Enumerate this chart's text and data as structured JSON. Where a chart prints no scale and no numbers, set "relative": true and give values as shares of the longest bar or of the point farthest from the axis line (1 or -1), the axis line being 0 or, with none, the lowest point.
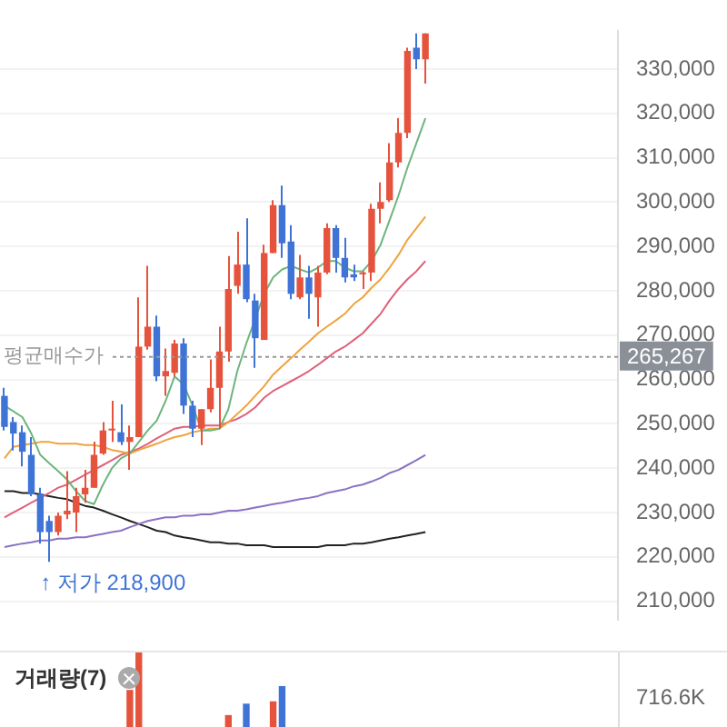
{
  "chart_data": [
    {
      "type": "candlestick",
      "categories": [
        null,
        null,
        null,
        null,
        null,
        null,
        null,
        null,
        null,
        null,
        null,
        null,
        null,
        null,
        null,
        null,
        null,
        null,
        null,
        null,
        null,
        null,
        null,
        null,
        null,
        null,
        null,
        null,
        null,
        null,
        null,
        null,
        null,
        null,
        null,
        null,
        null,
        null,
        null,
        null,
        null,
        null,
        null,
        null,
        null,
        null,
        null,
        null,
        null,
        null,
        null,
        null,
        null,
        null,
        null,
        null,
        null,
        null,
        null,
        null,
        null,
        null,
        null,
        null,
        null,
        null,
        null,
        null,
        null
      ],
      "ohlc": [
        [
          256300,
          258100,
          248500,
          249300
        ],
        [
          250400,
          251500,
          244000,
          247800
        ],
        [
          248100,
          249600,
          240400,
          243700
        ],
        [
          243000,
          247000,
          233700,
          234100
        ],
        [
          234100,
          235600,
          223000,
          225600
        ],
        [
          228100,
          229300,
          218900,
          225600
        ],
        [
          225600,
          230000,
          224800,
          229300
        ],
        [
          229600,
          239300,
          228500,
          230400
        ],
        [
          230000,
          235600,
          225600,
          233700
        ],
        [
          234100,
          239600,
          232200,
          235600
        ],
        [
          235600,
          246000,
          235600,
          243000
        ],
        [
          243300,
          250400,
          243000,
          248500
        ],
        [
          248500,
          255200,
          245900,
          248900
        ],
        [
          248100,
          254400,
          245200,
          245900
        ],
        [
          245900,
          249600,
          239600,
          247000
        ],
        [
          247000,
          278500,
          247000,
          267400
        ],
        [
          267400,
          285600,
          266700,
          271900
        ],
        [
          271900,
          274400,
          259600,
          260700
        ],
        [
          260700,
          267000,
          256300,
          261900
        ],
        [
          261500,
          268900,
          260700,
          268100
        ],
        [
          268100,
          269300,
          252200,
          254100
        ],
        [
          254100,
          255200,
          247000,
          248900
        ],
        [
          248900,
          253300,
          245200,
          253300
        ],
        [
          253300,
          264500,
          252600,
          258100
        ],
        [
          258100,
          271900,
          248900,
          266300
        ],
        [
          266300,
          287800,
          264000,
          280400
        ],
        [
          281100,
          293300,
          279300,
          285900
        ],
        [
          285900,
          296300,
          277400,
          278100
        ],
        [
          277800,
          279300,
          262600,
          269300
        ],
        [
          268900,
          290400,
          268900,
          288500
        ],
        [
          288500,
          300400,
          288500,
          299300
        ],
        [
          299300,
          303700,
          287400,
          290700
        ],
        [
          291100,
          294800,
          278100,
          279300
        ],
        [
          278500,
          288100,
          278100,
          283000
        ],
        [
          283000,
          285600,
          273700,
          279300
        ],
        [
          278500,
          285600,
          271900,
          284100
        ],
        [
          284100,
          295200,
          283700,
          294100
        ],
        [
          294100,
          294800,
          284100,
          287400
        ],
        [
          287400,
          291900,
          281900,
          283000
        ],
        [
          283700,
          285900,
          282200,
          283000
        ],
        [
          283700,
          284400,
          280400,
          284100
        ],
        [
          284100,
          299600,
          282200,
          298500
        ],
        [
          298500,
          304400,
          295200,
          300000
        ],
        [
          300400,
          313300,
          300000,
          308900
        ],
        [
          308900,
          318900,
          307800,
          315600
        ],
        [
          315600,
          334800,
          314400,
          334100
        ],
        [
          334800,
          338000,
          330000,
          332200
        ],
        [
          332200,
          338000,
          326700,
          338000
        ],
        null,
        null,
        null,
        null,
        null,
        null,
        null,
        null,
        null,
        null,
        null,
        null,
        null,
        null,
        null,
        null,
        null,
        null,
        null,
        null,
        null
      ],
      "colors": [
        "#3f74d6",
        "#3f74d6",
        "#3f74d6",
        "#3f74d6",
        "#3f74d6",
        "#3f74d6",
        "#e5533d",
        "#e5533d",
        "#e5533d",
        "#e5533d",
        "#e5533d",
        "#e5533d",
        "#e5533d",
        "#3f74d6",
        "#e5533d",
        "#e5533d",
        "#e5533d",
        "#3f74d6",
        "#e5533d",
        "#e5533d",
        "#3f74d6",
        "#3f74d6",
        "#e5533d",
        "#e5533d",
        "#e5533d",
        "#e5533d",
        "#e5533d",
        "#3f74d6",
        "#3f74d6",
        "#e5533d",
        "#e5533d",
        "#3f74d6",
        "#3f74d6",
        "#e5533d",
        "#3f74d6",
        "#e5533d",
        "#e5533d",
        "#3f74d6",
        "#3f74d6",
        "#3f74d6",
        "#e5533d",
        "#e5533d",
        "#e5533d",
        "#e5533d",
        "#e5533d",
        "#e5533d",
        "#3f74d6",
        "#e5533d",
        null,
        null,
        null,
        null,
        null,
        null,
        null,
        null,
        null,
        null,
        null,
        null,
        null,
        null,
        null,
        null,
        null,
        null,
        null,
        null,
        null
      ],
      "series": [
        {
          "type": "line",
          "color": "#6cb57c",
          "values": [
            254100,
            null,
            251500,
            247800,
            243000,
            241100,
            239300,
            237400,
            234800,
            232600,
            231900,
            236300,
            240000,
            242200,
            243300,
            245900,
            248500,
            250700,
            255200,
            260700,
            258900,
            254100,
            248500,
            248500,
            248900,
            253300,
            261900,
            268100,
            null,
            279300,
            283000,
            284800,
            285600,
            284800,
            284100,
            285200,
            286700,
            286700,
            285200,
            284400,
            284400,
            286700,
            290400,
            295900,
            301500,
            307800,
            313300,
            318900,
            null,
            null,
            null,
            null,
            null,
            null,
            null,
            null,
            null,
            null,
            null,
            null,
            null,
            null,
            null,
            null,
            null,
            null,
            null,
            null,
            null
          ]
        },
        {
          "type": "line",
          "color": "#f0a23c",
          "values": [
            242200,
            244800,
            245200,
            245500,
            245900,
            245900,
            245500,
            245500,
            245500,
            245200,
            245200,
            244800,
            244100,
            243700,
            243300,
            244100,
            244800,
            245500,
            246300,
            247000,
            247400,
            248100,
            248500,
            248900,
            248900,
            250400,
            252200,
            254100,
            256300,
            258500,
            261100,
            263000,
            264800,
            266700,
            268500,
            270400,
            271900,
            273300,
            274800,
            277000,
            278500,
            280700,
            282600,
            285200,
            288100,
            291500,
            294100,
            296700,
            null,
            null,
            null,
            null,
            null,
            null,
            null,
            null,
            null,
            null,
            null,
            null,
            null,
            null,
            null,
            null,
            null,
            null,
            null,
            null,
            null
          ]
        },
        {
          "type": "line",
          "color": "#e0607a",
          "values": [
            228900,
            230000,
            231100,
            232200,
            233300,
            234400,
            235600,
            236300,
            237400,
            238500,
            239600,
            240700,
            241800,
            243000,
            243700,
            244400,
            245500,
            246700,
            247800,
            248900,
            249300,
            249300,
            249600,
            249600,
            249600,
            250400,
            251100,
            252200,
            253700,
            255900,
            257400,
            258500,
            259600,
            260700,
            261900,
            263300,
            264800,
            266300,
            267400,
            268900,
            270400,
            272600,
            274800,
            277800,
            280400,
            282600,
            284400,
            286700,
            null,
            null,
            null,
            null,
            null,
            null,
            null,
            null,
            null,
            null,
            null,
            null,
            null,
            null,
            null,
            null,
            null,
            null,
            null,
            null,
            null
          ]
        },
        {
          "type": "line",
          "color": "#8a72c4",
          "values": [
            222200,
            222600,
            223000,
            223300,
            223700,
            223700,
            224100,
            224100,
            224400,
            224400,
            224800,
            225200,
            225600,
            225900,
            226700,
            227400,
            228100,
            228500,
            228900,
            228900,
            229300,
            229300,
            229600,
            229600,
            230000,
            230400,
            230400,
            230700,
            231100,
            231500,
            231900,
            232200,
            232600,
            233000,
            233300,
            233700,
            234400,
            234800,
            235200,
            235900,
            236300,
            237000,
            237800,
            238900,
            239600,
            240700,
            241800,
            243000,
            null,
            null,
            null,
            null,
            null,
            null,
            null,
            null,
            null,
            null,
            null,
            null,
            null,
            null,
            null,
            null,
            null,
            null,
            null,
            null,
            null
          ]
        },
        {
          "type": "line",
          "color": "#222222",
          "values": [
            234800,
            234800,
            234400,
            234400,
            234100,
            233700,
            233300,
            233000,
            232200,
            231500,
            231100,
            230400,
            229600,
            228900,
            228100,
            227400,
            226700,
            225900,
            225600,
            224800,
            224400,
            224100,
            223700,
            223300,
            223300,
            223000,
            223000,
            222600,
            222600,
            222600,
            222200,
            222200,
            222200,
            222200,
            222200,
            222200,
            222600,
            222600,
            222600,
            223000,
            223000,
            223300,
            223700,
            224100,
            224400,
            224800,
            225200,
            225600,
            null,
            null,
            null,
            null,
            null,
            null,
            null,
            null,
            null,
            null,
            null,
            null,
            null,
            null,
            null,
            null,
            null,
            null,
            null,
            null,
            null
          ]
        }
      ],
      "ylim": [
        205900,
        338500
      ],
      "yticks": [
        {
          "value": 210000,
          "label": "210,000"
        },
        {
          "value": 220000,
          "label": "220,000"
        },
        {
          "value": 230000,
          "label": "230,000"
        },
        {
          "value": 240000,
          "label": "240,000"
        },
        {
          "value": 250000,
          "label": "250,000"
        },
        {
          "value": 260000,
          "label": "260,000"
        },
        {
          "value": 270000,
          "label": "270,000"
        },
        {
          "value": 280000,
          "label": "280,000"
        },
        {
          "value": 290000,
          "label": "290,000"
        },
        {
          "value": 300000,
          "label": "300,000"
        },
        {
          "value": 310000,
          "label": "310,000"
        },
        {
          "value": 320000,
          "label": "320,000"
        },
        {
          "value": 330000,
          "label": "330,000"
        }
      ],
      "ref_lines": [
        {
          "axis": "y",
          "value": 265267,
          "label": "평균매수가",
          "color": "#999999",
          "line_style": "dotted"
        }
      ],
      "annotations": [
        "↑ 저가 218,900",
        "265,267"
      ],
      "grid": "y",
      "tick_labels": "y",
      "marker": "none",
      "line_style": "solid"
    },
    {
      "type": "bar",
      "title": "거래량(7)",
      "relative": true,
      "categories": [
        null,
        null,
        null,
        null,
        null,
        null,
        null,
        null,
        null,
        null,
        null,
        null,
        null,
        null,
        null,
        null,
        null,
        null,
        null,
        null,
        null,
        null,
        null,
        null,
        null,
        null,
        null,
        null,
        null,
        null,
        null,
        null,
        null,
        null,
        null,
        null,
        null,
        null,
        null,
        null,
        null,
        null,
        null,
        null,
        null,
        null,
        null,
        null,
        null,
        null,
        null,
        null,
        null,
        null,
        null,
        null,
        null,
        null,
        null,
        null,
        null,
        null,
        null,
        null,
        null,
        null,
        null,
        null,
        null
      ],
      "values": [
        null,
        null,
        null,
        null,
        null,
        null,
        null,
        null,
        null,
        null,
        null,
        null,
        null,
        null,
        0.51,
        1,
        null,
        null,
        null,
        null,
        null,
        null,
        null,
        null,
        null,
        0.18,
        null,
        0.33,
        null,
        null,
        0.36,
        0.56,
        null,
        null,
        null,
        null,
        null,
        null,
        null,
        null,
        null,
        null,
        null,
        null,
        null,
        null,
        null,
        null,
        null,
        null,
        null,
        null,
        null,
        null,
        null,
        null,
        null,
        null,
        null,
        null,
        null,
        null,
        null,
        null,
        null,
        null,
        null,
        null,
        null
      ],
      "colors": [
        null,
        null,
        null,
        null,
        null,
        null,
        null,
        null,
        null,
        null,
        null,
        null,
        null,
        null,
        "#e5533d",
        "#e5533d",
        null,
        null,
        null,
        null,
        null,
        null,
        null,
        null,
        null,
        "#e5533d",
        null,
        "#3f74d6",
        null,
        null,
        "#e5533d",
        "#3f74d6",
        null,
        null,
        null,
        null,
        null,
        null,
        null,
        null,
        null,
        null,
        null,
        null,
        null,
        null,
        null,
        null,
        null,
        null,
        null,
        null,
        null,
        null,
        null,
        null,
        null,
        null,
        null,
        null,
        null,
        null,
        null,
        null,
        null,
        null,
        null,
        null,
        null
      ],
      "annotations": [
        "716.6K"
      ],
      "grid": false,
      "tick_labels": false
    }
  ]
}
